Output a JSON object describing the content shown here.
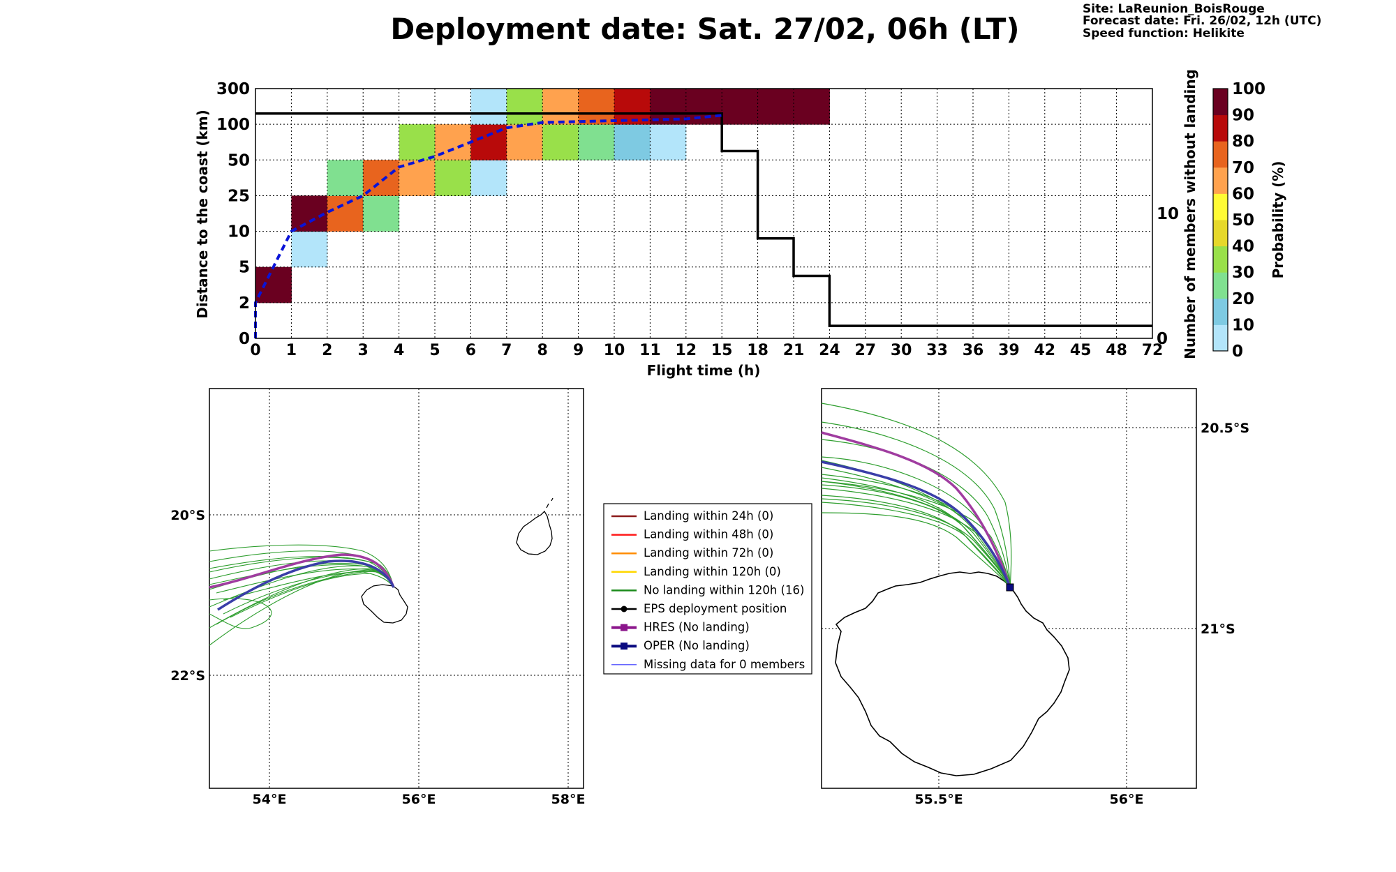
{
  "header": {
    "title": "Deployment date: Sat. 27/02, 06h (LT)",
    "site": "Site: LaReunion_BoisRouge",
    "forecast": "Forecast date: Fri. 26/02, 12h (UTC)",
    "speed": "Speed function: Helikite"
  },
  "chart_data": {
    "type": "heatmap",
    "xlabel": "Flight time (h)",
    "ylabel_left": "Distance to the coast (km)",
    "ylabel_right": "Number of members without landing",
    "x_tick_labels": [
      "0",
      "1",
      "2",
      "3",
      "4",
      "5",
      "6",
      "7",
      "8",
      "9",
      "10",
      "11",
      "12",
      "15",
      "18",
      "21",
      "24",
      "27",
      "30",
      "33",
      "36",
      "39",
      "42",
      "45",
      "48",
      "72"
    ],
    "y_tick_labels": [
      "0",
      "2",
      "5",
      "10",
      "25",
      "50",
      "100",
      "300"
    ],
    "right_tick_labels": [
      {
        "value": 0,
        "label": "0"
      },
      {
        "value": 10,
        "label": "10"
      }
    ],
    "right_ylim": [
      0,
      20
    ],
    "x_grid": true,
    "y_grid": true,
    "colorbar": {
      "label": "Probability (%)",
      "tick_labels": [
        "0",
        "10",
        "20",
        "30",
        "40",
        "50",
        "60",
        "70",
        "80",
        "90",
        "100"
      ],
      "colors": [
        "#b3e5fa",
        "#7ecae2",
        "#80e090",
        "#99e04a",
        "#e6d82a",
        "#fffb34",
        "#ffa24e",
        "#e8641e",
        "#b80a0a",
        "#6a0020"
      ]
    },
    "cells": [
      {
        "x": "0",
        "band": "2-5",
        "prob": 100,
        "color": "#6a0020"
      },
      {
        "x": "1",
        "band": "5-10",
        "prob": 5,
        "color": "#b3e5fa"
      },
      {
        "x": "1",
        "band": "10-25",
        "prob": 95,
        "color": "#6a0020"
      },
      {
        "x": "2",
        "band": "10-25",
        "prob": 70,
        "color": "#e8641e"
      },
      {
        "x": "2",
        "band": "25-50",
        "prob": 20,
        "color": "#80e090"
      },
      {
        "x": "3",
        "band": "10-25",
        "prob": 20,
        "color": "#80e090"
      },
      {
        "x": "3",
        "band": "25-50",
        "prob": 70,
        "color": "#e8641e"
      },
      {
        "x": "4",
        "band": "25-50",
        "prob": 60,
        "color": "#ffa24e"
      },
      {
        "x": "4",
        "band": "50-100",
        "prob": 30,
        "color": "#99e04a"
      },
      {
        "x": "5",
        "band": "25-50",
        "prob": 30,
        "color": "#99e04a"
      },
      {
        "x": "5",
        "band": "50-100",
        "prob": 60,
        "color": "#ffa24e"
      },
      {
        "x": "6",
        "band": "25-50",
        "prob": 5,
        "color": "#b3e5fa"
      },
      {
        "x": "6",
        "band": "50-100",
        "prob": 80,
        "color": "#b80a0a"
      },
      {
        "x": "6",
        "band": "100-300",
        "prob": 5,
        "color": "#b3e5fa"
      },
      {
        "x": "7",
        "band": "50-100",
        "prob": 60,
        "color": "#ffa24e"
      },
      {
        "x": "7",
        "band": "100-300",
        "prob": 30,
        "color": "#99e04a"
      },
      {
        "x": "8",
        "band": "50-100",
        "prob": 30,
        "color": "#99e04a"
      },
      {
        "x": "8",
        "band": "100-300",
        "prob": 60,
        "color": "#ffa24e"
      },
      {
        "x": "9",
        "band": "50-100",
        "prob": 20,
        "color": "#80e090"
      },
      {
        "x": "9",
        "band": "100-300",
        "prob": 70,
        "color": "#e8641e"
      },
      {
        "x": "10",
        "band": "50-100",
        "prob": 10,
        "color": "#7ecae2"
      },
      {
        "x": "10",
        "band": "100-300",
        "prob": 80,
        "color": "#b80a0a"
      },
      {
        "x": "11",
        "band": "50-100",
        "prob": 5,
        "color": "#b3e5fa"
      },
      {
        "x": "11",
        "band": "100-300",
        "prob": 95,
        "color": "#6a0020"
      },
      {
        "x": "12",
        "band": "100-300",
        "prob": 100,
        "color": "#6a0020"
      },
      {
        "x": "15",
        "band": "100-300",
        "prob": 100,
        "color": "#6a0020"
      },
      {
        "x": "18",
        "band": "100-300",
        "prob": 100,
        "color": "#6a0020"
      },
      {
        "x": "21",
        "band": "100-300",
        "prob": 100,
        "color": "#6a0020"
      }
    ],
    "median_distance_km": {
      "style": "blue dashed",
      "points": [
        {
          "x": "0",
          "y": 0
        },
        {
          "x": "0",
          "y": 2
        },
        {
          "x": "0.5",
          "y": 5
        },
        {
          "x": "1",
          "y": 10
        },
        {
          "x": "2",
          "y": 18
        },
        {
          "x": "3",
          "y": 25
        },
        {
          "x": "4",
          "y": 45
        },
        {
          "x": "5",
          "y": 55
        },
        {
          "x": "6",
          "y": 75
        },
        {
          "x": "7",
          "y": 95
        },
        {
          "x": "8",
          "y": 110
        },
        {
          "x": "9",
          "y": 115
        },
        {
          "x": "10",
          "y": 120
        },
        {
          "x": "11",
          "y": 125
        },
        {
          "x": "12",
          "y": 130
        },
        {
          "x": "15",
          "y": 150
        }
      ]
    },
    "members_without_landing": {
      "style": "black solid step",
      "points": [
        {
          "x": "0",
          "y": 18
        },
        {
          "x": "12",
          "y": 18
        },
        {
          "x": "15",
          "y": 18
        },
        {
          "x": "15",
          "y": 17
        },
        {
          "x": "15",
          "y": 16
        },
        {
          "x": "15",
          "y": 15
        },
        {
          "x": "18",
          "y": 12
        },
        {
          "x": "18",
          "y": 10
        },
        {
          "x": "18",
          "y": 9
        },
        {
          "x": "18",
          "y": 8
        },
        {
          "x": "21",
          "y": 6
        },
        {
          "x": "21",
          "y": 5
        },
        {
          "x": "24",
          "y": 1
        },
        {
          "x": "72",
          "y": 1
        }
      ]
    }
  },
  "legend": {
    "items": [
      {
        "label": "Landing within 24h (0)",
        "color": "#8b1a1a",
        "kind": "line"
      },
      {
        "label": "Landing within 48h (0)",
        "color": "#ff1a1a",
        "kind": "line"
      },
      {
        "label": "Landing within 72h (0)",
        "color": "#ff8c00",
        "kind": "line"
      },
      {
        "label": "Landing within 120h (0)",
        "color": "#ffd700",
        "kind": "line"
      },
      {
        "label": "No landing within 120h (16)",
        "color": "#1a8a1a",
        "kind": "line"
      },
      {
        "label": "EPS deployment position",
        "color": "#000000",
        "kind": "dot"
      },
      {
        "label": "HRES (No landing)",
        "color": "#8b158b",
        "kind": "square"
      },
      {
        "label": "OPER (No landing)",
        "color": "#0a0a80",
        "kind": "square"
      },
      {
        "label": "Missing data for 0 members",
        "color": "#3333ff",
        "kind": "thin"
      }
    ]
  },
  "map_left": {
    "lat_labels": [
      "20°S",
      "22°S"
    ],
    "lon_labels": [
      "54°E",
      "56°E",
      "58°E"
    ]
  },
  "map_right": {
    "lat_labels": [
      "20.5°S",
      "21°S"
    ],
    "lon_labels": [
      "55.5°E",
      "56°E"
    ]
  }
}
